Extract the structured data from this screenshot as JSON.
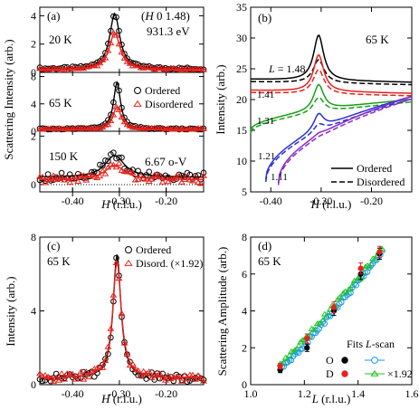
{
  "chart_data": [
    {
      "id": "a",
      "type": "scatter",
      "panel_label": "(a)",
      "xlabel": "H (r.l.u.)",
      "ylabel": "Scattering Intensity (arb.)",
      "xlim": [
        -0.47,
        -0.12
      ],
      "x_ticks": [
        -0.4,
        -0.3,
        -0.2
      ],
      "x_tick_labels": [
        "-0.40",
        "-0.30",
        "-0.20"
      ],
      "annotations": [
        "(H 0 1.48)",
        "931.3 eV",
        "6.67 o-V"
      ],
      "legend": [
        "Ordered",
        "Disordered"
      ],
      "legend_position": "middle subpanel, top-right",
      "subpanels": [
        {
          "label": "20 K",
          "ylim": [
            0,
            4.6
          ],
          "y_ticks": [
            0,
            2,
            4
          ],
          "y_tick_labels": [
            "0",
            "2",
            "4"
          ],
          "series": [
            {
              "name": "Ordered",
              "marker": "circle",
              "color": "#000000",
              "peak_x": -0.31,
              "peak": 3.9,
              "width": 0.013,
              "background": 0.25
            },
            {
              "name": "Disordered",
              "marker": "triangle",
              "color": "#e8221c",
              "peak_x": -0.31,
              "peak": 2.6,
              "width": 0.014,
              "background": 0.2
            }
          ]
        },
        {
          "label": "65 K",
          "ylim": [
            0,
            8.6
          ],
          "y_ticks": [
            0,
            4,
            8
          ],
          "y_tick_labels": [
            "0",
            "4",
            "8"
          ],
          "series": [
            {
              "name": "Ordered",
              "marker": "circle",
              "color": "#000000",
              "peak_x": -0.305,
              "peak": 6.8,
              "width": 0.009,
              "background": 0.3
            },
            {
              "name": "Disordered",
              "marker": "triangle",
              "color": "#e8221c",
              "peak_x": -0.305,
              "peak": 3.3,
              "width": 0.01,
              "background": 0.3
            }
          ]
        },
        {
          "label": "150 K",
          "ylim": [
            -0.3,
            2.2
          ],
          "y_ticks": [
            0,
            2
          ],
          "y_tick_labels": [
            "0",
            "2"
          ],
          "series": [
            {
              "name": "Ordered",
              "marker": "circle",
              "color": "#000000",
              "peak_x": -0.31,
              "peak": 0.9,
              "width": 0.025,
              "background": 0.3
            },
            {
              "name": "Disordered",
              "marker": "triangle",
              "color": "#e8221c",
              "peak_x": -0.31,
              "peak": 0.6,
              "width": 0.025,
              "background": 0.2
            }
          ]
        }
      ]
    },
    {
      "id": "b",
      "type": "line",
      "panel_label": "(b)",
      "title_annotation": "65 K",
      "xlabel": "H (r.l.u.)",
      "ylabel": "Intensity (arb.)",
      "xlim": [
        -0.44,
        -0.12
      ],
      "ylim": [
        5,
        35
      ],
      "x_ticks": [
        -0.4,
        -0.3,
        -0.2
      ],
      "x_tick_labels": [
        "-0.40",
        "-0.30",
        "-0.20"
      ],
      "y_ticks": [
        5,
        10,
        15,
        20,
        25,
        30,
        35
      ],
      "y_tick_labels": [
        "5",
        "10",
        "15",
        "20",
        "25",
        "30",
        "35"
      ],
      "legend": [
        {
          "label": "Ordered",
          "style": "solid"
        },
        {
          "label": "Disordered",
          "style": "dashed"
        }
      ],
      "legend_position": "bottom-right",
      "series": [
        {
          "name": "L = 1.48",
          "label": "L = 1.48",
          "color": "#000000",
          "x_start": -0.44,
          "base_start": 23.3,
          "base_end": 22.8,
          "peak_x": -0.305,
          "peak_ordered": 7.4,
          "peak_disordered": 3.8
        },
        {
          "name": "1.41",
          "label": "1.41",
          "color": "#e8221c",
          "x_start": -0.44,
          "base_start": 21.5,
          "base_end": 21.0,
          "peak_x": -0.305,
          "peak_ordered": 6.0,
          "peak_disordered": 4.0
        },
        {
          "name": "1.31",
          "label": "1.31",
          "color": "#15a117",
          "x_start": -0.44,
          "base_start": 15.0,
          "base_end": 20.0,
          "peak_x": -0.305,
          "peak_ordered": 4.2,
          "peak_disordered": 2.5
        },
        {
          "name": "1.21",
          "label": "1.21",
          "color": "#2b2fd6",
          "x_start": -0.41,
          "base_start": 7.0,
          "base_end": 20.5,
          "peak_x": -0.305,
          "peak_ordered": 2.6,
          "peak_disordered": 1.3
        },
        {
          "name": "1.11",
          "label": "1.11",
          "color": "#8a2bc8",
          "x_start": -0.385,
          "base_start": 6.5,
          "base_end": 20.5,
          "peak_x": -0.305,
          "peak_ordered": 0.4,
          "peak_disordered": 0.2
        }
      ]
    },
    {
      "id": "c",
      "type": "scatter",
      "panel_label": "(c)",
      "title_annotation": "65 K",
      "xlabel": "H (r.l.u.)",
      "ylabel": "Intensity (arb.)",
      "xlim": [
        -0.47,
        -0.12
      ],
      "ylim": [
        0,
        8
      ],
      "x_ticks": [
        -0.4,
        -0.3,
        -0.2
      ],
      "x_tick_labels": [
        "-0.40",
        "-0.30",
        "-0.20"
      ],
      "y_ticks": [
        0,
        4,
        8
      ],
      "y_tick_labels": [
        "0",
        "4",
        "8"
      ],
      "legend": [
        "Ordered",
        "Disord. (×1.92)"
      ],
      "legend_position": "top-right",
      "series": [
        {
          "name": "Ordered",
          "marker": "circle",
          "color": "#000000",
          "peak_x": -0.305,
          "peak": 6.7,
          "width": 0.01,
          "background": 0.35
        },
        {
          "name": "Disord. (×1.92)",
          "marker": "triangle",
          "color": "#e8221c",
          "peak_x": -0.305,
          "peak": 6.3,
          "width": 0.011,
          "background": 0.35
        }
      ]
    },
    {
      "id": "d",
      "type": "scatter",
      "panel_label": "(d)",
      "title_annotation": "65 K",
      "xlabel": "L (r.l.u.)",
      "ylabel": "Scattering Amplitude (arb.)",
      "xlim": [
        1.0,
        1.6
      ],
      "ylim": [
        0,
        8
      ],
      "x_ticks": [
        1.0,
        1.2,
        1.4,
        1.6
      ],
      "x_tick_labels": [
        "1.0",
        "1.2",
        "1.4",
        "1.6"
      ],
      "y_ticks": [
        0,
        2,
        4,
        6,
        8
      ],
      "y_tick_labels": [
        "0",
        "2",
        "4",
        "6",
        "8"
      ],
      "legend_title": [
        "Fits",
        "L-scan"
      ],
      "legend_rows": [
        {
          "label": "O",
          "fit_marker": "filled-circle",
          "fit_color": "#000000",
          "scan_marker": "open-circle",
          "scan_color": "#1a9be8",
          "note": ""
        },
        {
          "label": "D",
          "fit_marker": "filled-circle",
          "fit_color": "#e8221c",
          "scan_marker": "open-triangle",
          "scan_color": "#22c41c",
          "note": "×1.92"
        }
      ],
      "legend_position": "bottom-right",
      "fits": [
        {
          "name": "O",
          "color": "#000000",
          "x": [
            1.11,
            1.21,
            1.31,
            1.41,
            1.48
          ],
          "y": [
            0.8,
            2.0,
            4.0,
            6.0,
            7.1
          ],
          "err": [
            0.15,
            0.2,
            0.25,
            0.3,
            0.3
          ]
        },
        {
          "name": "D",
          "color": "#e8221c",
          "x": [
            1.11,
            1.21,
            1.31,
            1.41,
            1.48
          ],
          "y": [
            1.0,
            2.5,
            4.2,
            6.3,
            7.2
          ],
          "err": [
            0.15,
            0.25,
            0.3,
            0.3,
            0.3
          ]
        }
      ],
      "scan_O": {
        "name": "O L-scan",
        "color": "#1a9be8",
        "x_start": 1.11,
        "x_end": 1.49,
        "y_start": 0.8,
        "y_end": 7.2
      },
      "scan_D": {
        "name": "D L-scan ×1.92",
        "color": "#22c41c",
        "x_start": 1.11,
        "x_end": 1.49,
        "y_start": 1.1,
        "y_end": 7.3
      }
    }
  ]
}
